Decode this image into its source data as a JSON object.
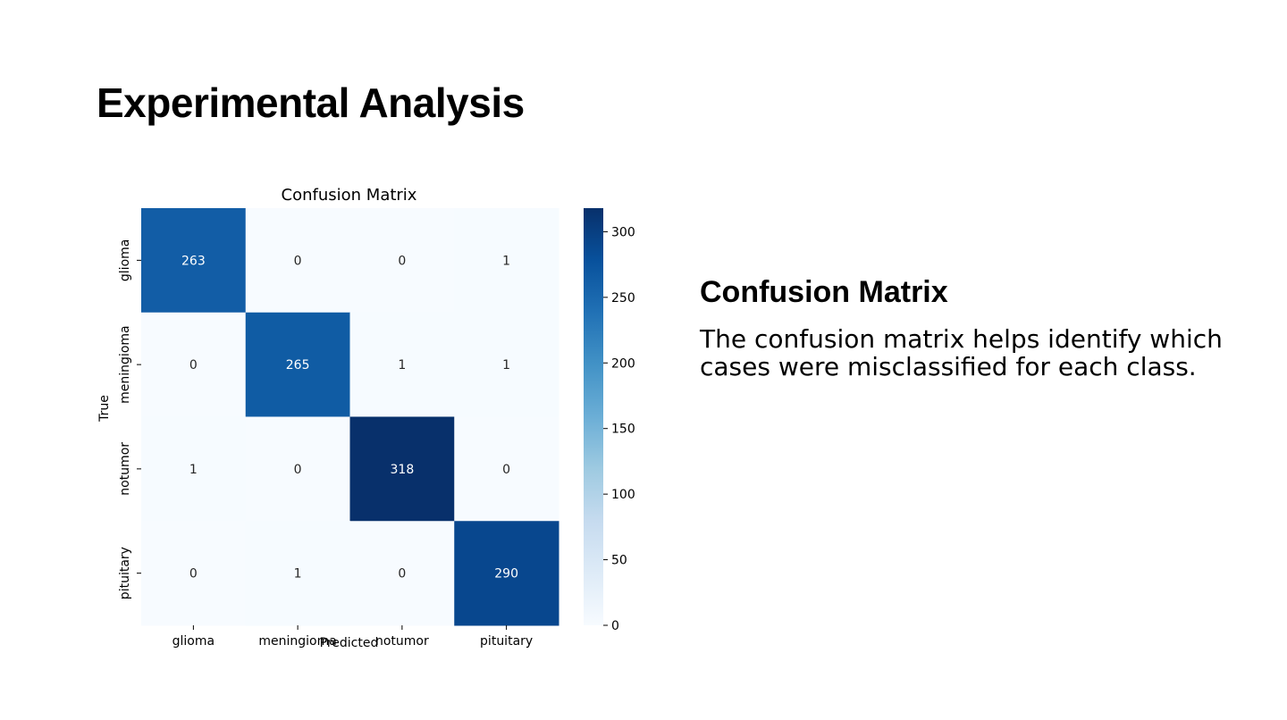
{
  "slide": {
    "title": "Experimental Analysis",
    "side_heading": "Confusion Matrix",
    "side_body": "The confusion matrix helps identify which cases were misclassified for each class."
  },
  "chart_data": {
    "type": "heatmap",
    "title": "Confusion Matrix",
    "xlabel": "Predicted",
    "ylabel": "True",
    "categories": [
      "glioma",
      "meningioma",
      "notumor",
      "pituitary"
    ],
    "values": [
      [
        263,
        0,
        0,
        1
      ],
      [
        0,
        265,
        1,
        1
      ],
      [
        1,
        0,
        318,
        0
      ],
      [
        0,
        1,
        0,
        290
      ]
    ],
    "colorbar": {
      "min": 0,
      "max": 318,
      "ticks": [
        0,
        50,
        100,
        150,
        200,
        250,
        300
      ]
    },
    "colormap": "Blues",
    "colors": {
      "low": "#f7fbff",
      "high": "#08306b"
    }
  }
}
